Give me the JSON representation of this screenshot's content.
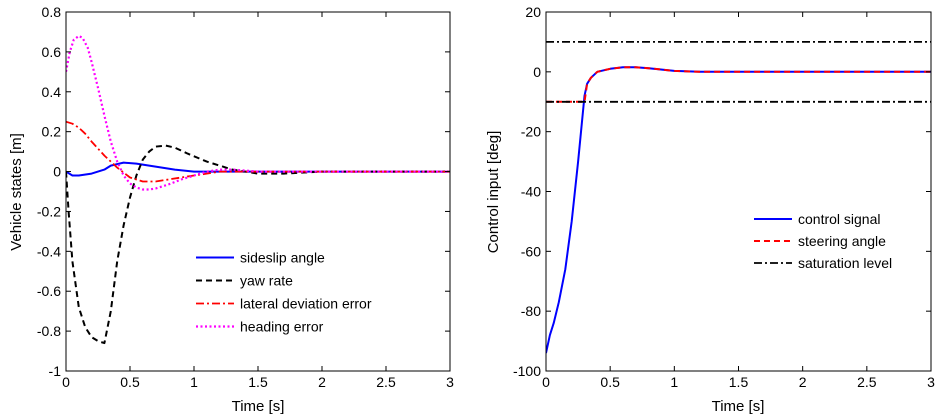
{
  "chart_data": [
    {
      "type": "line",
      "xlabel": "Time [s]",
      "ylabel": "Vehicle states [m]",
      "xlim": [
        0,
        3
      ],
      "ylim": [
        -1,
        0.8
      ],
      "xticks": [
        0,
        0.5,
        1,
        1.5,
        2,
        2.5,
        3
      ],
      "xtick_labels": [
        "0",
        "0.5",
        "1",
        "1.5",
        "2",
        "2.5",
        "3"
      ],
      "yticks": [
        -1,
        -0.8,
        -0.6,
        -0.4,
        -0.2,
        0,
        0.2,
        0.4,
        0.6,
        0.8
      ],
      "ytick_labels": [
        "-1",
        "-0.8",
        "-0.6",
        "-0.4",
        "-0.2",
        "0",
        "0.2",
        "0.4",
        "0.6",
        "0.8"
      ],
      "grid": false,
      "legend_position": "bottom-center",
      "series": [
        {
          "name": "sideslip angle",
          "color": "#0000ff",
          "style": "solid",
          "x": [
            0,
            0.05,
            0.1,
            0.2,
            0.3,
            0.35,
            0.45,
            0.55,
            0.65,
            0.75,
            0.85,
            1.0,
            1.2,
            1.5,
            2.0,
            2.5,
            3.0
          ],
          "y": [
            0.0,
            -0.02,
            -0.02,
            -0.01,
            0.01,
            0.03,
            0.045,
            0.04,
            0.03,
            0.02,
            0.01,
            0.0,
            0.0,
            0.0,
            0.0,
            0.0,
            0.0
          ]
        },
        {
          "name": "yaw rate",
          "color": "#000000",
          "style": "dashed",
          "x": [
            0,
            0.02,
            0.05,
            0.1,
            0.15,
            0.2,
            0.25,
            0.3,
            0.35,
            0.4,
            0.45,
            0.5,
            0.55,
            0.6,
            0.65,
            0.7,
            0.78,
            0.85,
            0.95,
            1.1,
            1.3,
            1.5,
            1.7,
            2.0,
            2.5,
            3.0
          ],
          "y": [
            0.0,
            -0.2,
            -0.45,
            -0.68,
            -0.78,
            -0.83,
            -0.85,
            -0.86,
            -0.7,
            -0.45,
            -0.27,
            -0.13,
            -0.02,
            0.06,
            0.1,
            0.125,
            0.13,
            0.12,
            0.09,
            0.05,
            0.01,
            -0.01,
            -0.01,
            0.0,
            0.0,
            0.0
          ]
        },
        {
          "name": "lateral deviation error",
          "color": "#ff0000",
          "style": "dashdot",
          "x": [
            0,
            0.05,
            0.1,
            0.15,
            0.2,
            0.3,
            0.4,
            0.5,
            0.6,
            0.7,
            0.8,
            0.9,
            1.0,
            1.1,
            1.2,
            1.5,
            2.0,
            3.0
          ],
          "y": [
            0.25,
            0.24,
            0.22,
            0.19,
            0.15,
            0.08,
            0.02,
            -0.03,
            -0.05,
            -0.05,
            -0.04,
            -0.03,
            -0.02,
            -0.01,
            0.0,
            0.0,
            0.0,
            0.0
          ]
        },
        {
          "name": "heading error",
          "color": "#ff00ff",
          "style": "dotted",
          "x": [
            0,
            0.03,
            0.06,
            0.1,
            0.13,
            0.17,
            0.2,
            0.25,
            0.3,
            0.35,
            0.4,
            0.45,
            0.5,
            0.55,
            0.6,
            0.65,
            0.7,
            0.8,
            0.9,
            1.0,
            1.1,
            1.2,
            1.3,
            1.5,
            2.0,
            3.0
          ],
          "y": [
            0.5,
            0.6,
            0.66,
            0.68,
            0.67,
            0.62,
            0.55,
            0.42,
            0.28,
            0.15,
            0.05,
            -0.02,
            -0.06,
            -0.08,
            -0.09,
            -0.09,
            -0.085,
            -0.065,
            -0.04,
            -0.02,
            0.0,
            0.01,
            0.01,
            0.0,
            0.0,
            0.0
          ]
        }
      ]
    },
    {
      "type": "line",
      "xlabel": "Time [s]",
      "ylabel": "Control input [deg]",
      "xlim": [
        0,
        3
      ],
      "ylim": [
        -100,
        20
      ],
      "xticks": [
        0,
        0.5,
        1,
        1.5,
        2,
        2.5,
        3
      ],
      "xtick_labels": [
        "0",
        "0.5",
        "1",
        "1.5",
        "2",
        "2.5",
        "3"
      ],
      "yticks": [
        -100,
        -80,
        -60,
        -40,
        -20,
        0,
        20
      ],
      "ytick_labels": [
        "-100",
        "-80",
        "-60",
        "-40",
        "-20",
        "0",
        "20"
      ],
      "grid": false,
      "legend_position": "center-right",
      "series": [
        {
          "name": "control signal",
          "color": "#0000ff",
          "style": "solid",
          "x": [
            0,
            0.03,
            0.06,
            0.1,
            0.15,
            0.2,
            0.25,
            0.3,
            0.32,
            0.35,
            0.4,
            0.5,
            0.6,
            0.7,
            0.8,
            1.0,
            1.2,
            1.5,
            2.0,
            3.0
          ],
          "y": [
            -94,
            -88,
            -84,
            -77,
            -66,
            -50,
            -30,
            -8,
            -4,
            -2,
            0,
            1,
            1.5,
            1.5,
            1.2,
            0.3,
            0,
            0,
            0,
            0
          ]
        },
        {
          "name": "steering angle",
          "color": "#ff0000",
          "style": "dashed",
          "x": [
            0,
            0.03,
            0.06,
            0.1,
            0.15,
            0.2,
            0.25,
            0.3,
            0.32,
            0.35,
            0.4,
            0.5,
            0.6,
            0.7,
            0.8,
            1.0,
            1.2,
            1.5,
            2.0,
            3.0
          ],
          "y": [
            -10,
            -10,
            -10,
            -10,
            -10,
            -10,
            -10,
            -10,
            -4,
            -2,
            0,
            1,
            1.5,
            1.5,
            1.2,
            0.3,
            0,
            0,
            0,
            0
          ]
        },
        {
          "name": "saturation level",
          "color": "#000000",
          "style": "dashdot",
          "x": [
            0,
            3
          ],
          "y": [
            10,
            10
          ],
          "y_lower": [
            -10,
            -10
          ]
        }
      ]
    }
  ]
}
